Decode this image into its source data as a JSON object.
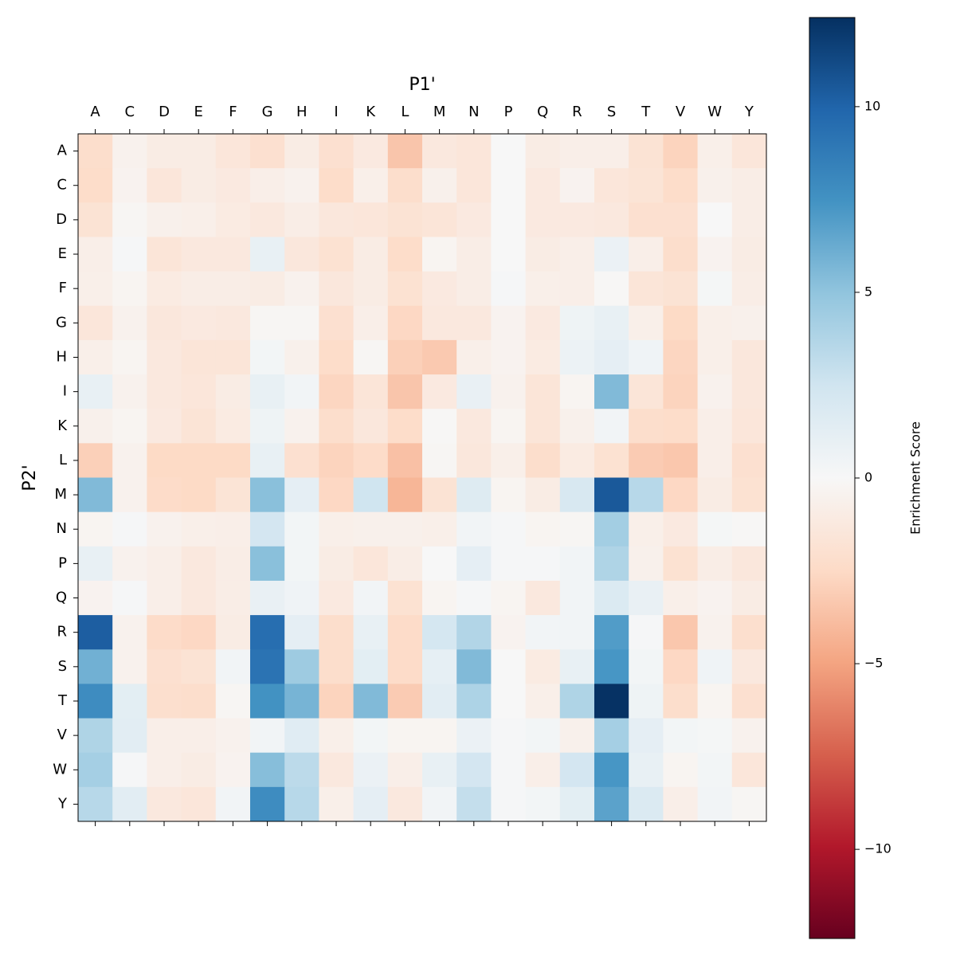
{
  "chart_data": {
    "type": "heatmap",
    "x_label": "P1'",
    "y_label": "P2'",
    "x_categories": [
      "A",
      "C",
      "D",
      "E",
      "F",
      "G",
      "H",
      "I",
      "K",
      "L",
      "M",
      "N",
      "P",
      "Q",
      "R",
      "S",
      "T",
      "V",
      "W",
      "Y"
    ],
    "y_categories": [
      "A",
      "C",
      "D",
      "E",
      "F",
      "G",
      "H",
      "I",
      "K",
      "L",
      "M",
      "N",
      "P",
      "Q",
      "R",
      "S",
      "T",
      "V",
      "W",
      "Y"
    ],
    "values": [
      [
        -2.2,
        -0.5,
        -1,
        -1,
        -1.5,
        -2,
        -1,
        -2,
        -1.2,
        -3.5,
        -1.3,
        -1.5,
        0,
        -1,
        -0.8,
        -0.8,
        -1.8,
        -2.8,
        -0.7,
        -1.5
      ],
      [
        -2.3,
        -0.4,
        -1.5,
        -1,
        -1.2,
        -0.8,
        -0.5,
        -2.3,
        -0.7,
        -2.2,
        -0.6,
        -1.5,
        0,
        -1.2,
        -0.4,
        -1.5,
        -1.7,
        -2.3,
        -0.6,
        -0.9
      ],
      [
        -1.8,
        -0.2,
        -0.6,
        -0.7,
        -1.1,
        -1.3,
        -0.9,
        -1.4,
        -1.5,
        -1.8,
        -1.6,
        -1.2,
        0,
        -1.2,
        -1.2,
        -1.3,
        -2,
        -2,
        0,
        -0.9
      ],
      [
        -0.8,
        0.1,
        -1.6,
        -1.3,
        -1.3,
        1,
        -1.4,
        -1.9,
        -1,
        -2.3,
        -0.3,
        -0.9,
        0,
        -1,
        -0.8,
        0.8,
        -0.8,
        -2.2,
        -0.4,
        -1
      ],
      [
        -0.7,
        -0.3,
        -1.1,
        -0.9,
        -0.9,
        -1,
        -0.5,
        -1.4,
        -1,
        -1.9,
        -1.2,
        -0.9,
        0.1,
        -0.7,
        -0.8,
        -0.1,
        -1.6,
        -1.8,
        0.2,
        -0.9
      ],
      [
        -1.5,
        -0.5,
        -1.4,
        -1.2,
        -1.3,
        -0.2,
        -0.2,
        -2,
        -0.8,
        -2.6,
        -1.3,
        -1.3,
        -0.4,
        -1.2,
        0.6,
        1,
        -0.7,
        -2.5,
        -0.7,
        -0.6
      ],
      [
        -0.7,
        -0.3,
        -1.3,
        -1.6,
        -1.6,
        0.3,
        -0.6,
        -2.3,
        -0.2,
        -3,
        -3.3,
        -0.7,
        -0.4,
        -1.1,
        0.7,
        1.2,
        0.5,
        -2.7,
        -0.7,
        -1.4
      ],
      [
        1,
        -0.5,
        -1.3,
        -1.5,
        -1,
        1,
        0.4,
        -2.7,
        -1.6,
        -3.5,
        -1.2,
        0.9,
        -0.5,
        -1.6,
        -0.3,
        5.5,
        -1.6,
        -2.8,
        -0.5,
        -1.4
      ],
      [
        -0.6,
        -0.3,
        -1.2,
        -1.7,
        -1.1,
        0.6,
        -0.5,
        -2.2,
        -1.4,
        -2.3,
        -0.1,
        -1.3,
        -0.3,
        -1.6,
        -0.6,
        0.4,
        -2.2,
        -2.3,
        -0.8,
        -1.5
      ],
      [
        -3,
        -0.5,
        -2.5,
        -2.5,
        -2.5,
        1,
        -2,
        -2.8,
        -2.4,
        -3.7,
        -0.2,
        -1.4,
        -0.7,
        -2.2,
        -1.1,
        -1.9,
        -3.2,
        -3.4,
        -0.8,
        -2
      ],
      [
        5.5,
        -0.5,
        -2.4,
        -2.5,
        -1.7,
        5.2,
        1.2,
        -2.6,
        2.5,
        -4.2,
        -1.8,
        1.6,
        -0.3,
        -1,
        2,
        10.5,
        3.5,
        -2.6,
        -1,
        -1.9
      ],
      [
        -0.3,
        0.1,
        -0.5,
        -0.7,
        -0.8,
        2.3,
        0.3,
        -0.7,
        -0.6,
        -0.6,
        -0.7,
        0.4,
        0.1,
        -0.3,
        -0.2,
        4.3,
        -0.7,
        -1.2,
        0.2,
        -0.1
      ],
      [
        1,
        -0.5,
        -0.8,
        -1.3,
        -0.9,
        5.2,
        0.3,
        -1,
        -1.5,
        -0.9,
        0,
        1.2,
        0.1,
        0.1,
        0.4,
        3.8,
        -0.6,
        -1.9,
        -0.9,
        -1.4
      ],
      [
        -0.4,
        0.1,
        -0.8,
        -1.3,
        -0.9,
        0.9,
        0.5,
        -1.2,
        0.4,
        -1.9,
        -0.3,
        0.1,
        -0.3,
        -1.3,
        0.4,
        1.8,
        0.9,
        -0.7,
        -0.4,
        -1
      ],
      [
        10.3,
        -0.5,
        -2.4,
        -2.6,
        -1,
        9.5,
        1.2,
        -2.2,
        1,
        -2.4,
        2.2,
        3.7,
        -0.4,
        0.4,
        0.4,
        7,
        0.1,
        -3.4,
        -0.5,
        -2.1
      ],
      [
        6,
        -0.5,
        -2,
        -1.8,
        0.4,
        9.2,
        4.5,
        -2.2,
        1.3,
        -2.4,
        1.1,
        5.5,
        0,
        -1.1,
        1,
        7.3,
        0.3,
        -2.6,
        0.5,
        -1.3
      ],
      [
        7.8,
        1.3,
        -2.1,
        -2.2,
        -0.2,
        7.5,
        5.8,
        -2.8,
        5.5,
        -3.2,
        1.4,
        3.9,
        0,
        -0.7,
        3.8,
        12.3,
        0.6,
        -2.2,
        -0.3,
        -2
      ],
      [
        3.8,
        1.4,
        -0.8,
        -0.8,
        -0.5,
        0.4,
        1.5,
        -0.7,
        0.3,
        -0.3,
        -0.3,
        0.8,
        0.1,
        0.3,
        -0.6,
        4.2,
        1.2,
        0.3,
        0.2,
        -0.5
      ],
      [
        4.2,
        0.1,
        -0.8,
        -1,
        -0.4,
        5.3,
        3.3,
        -1.3,
        0.8,
        -0.8,
        1,
        2.3,
        0.1,
        -0.8,
        2.3,
        7.3,
        1,
        -0.3,
        0.3,
        -1.5
      ],
      [
        3.5,
        1.4,
        -1.3,
        -1.5,
        0.4,
        7.8,
        3.5,
        -0.7,
        1.2,
        -1.3,
        0.4,
        3,
        0.1,
        0.3,
        1.3,
        6.7,
        1.8,
        -0.8,
        0.4,
        -0.2
      ]
    ],
    "colormap": [
      "#67001f",
      "#b2182b",
      "#d6604d",
      "#f4a582",
      "#fddbc7",
      "#f7f7f7",
      "#d1e5f0",
      "#92c5de",
      "#4393c3",
      "#2166ac",
      "#053061"
    ],
    "colorbar": {
      "label": "Enrichment Score",
      "lim": [
        -12.4,
        12.4
      ],
      "ticks": [
        {
          "value": -10,
          "label": "−10"
        },
        {
          "value": -5,
          "label": "−5"
        },
        0,
        5,
        10
      ]
    }
  }
}
